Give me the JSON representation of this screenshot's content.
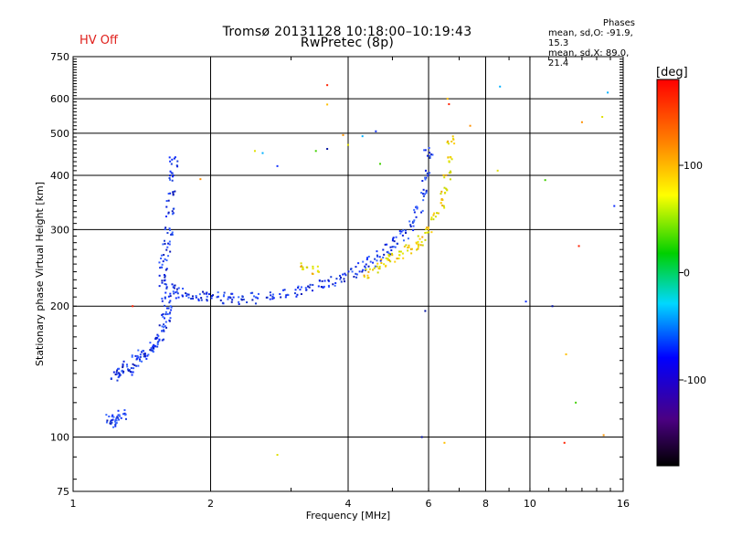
{
  "title": "Tromsø 20131128 10:18:00–10:19:43",
  "subtitle": "RwPretec (8p)",
  "status": "HV Off",
  "phase_box": {
    "title": "Phases",
    "line1": "mean, sd,O: -91.9, 15.3",
    "line2": "mean, sd,X: 89.0, 21.4"
  },
  "colorbar": {
    "label": "[deg]",
    "ticks": [
      "100",
      "0",
      "-100"
    ],
    "tick_values": [
      100,
      0,
      -100
    ],
    "range": [
      -180,
      180
    ]
  },
  "chart_data": {
    "type": "scatter",
    "xlabel": "Frequency [MHz]",
    "ylabel": "Stationary phase Virtual Height [km]",
    "x_scale": "log",
    "y_scale": "log",
    "xlim": [
      1,
      16
    ],
    "ylim": [
      75,
      750
    ],
    "x_ticks": [
      1,
      2,
      4,
      6,
      8,
      10,
      16
    ],
    "y_ticks": [
      75,
      100,
      200,
      300,
      400,
      500,
      600,
      750
    ],
    "grid": true,
    "o_trace": [
      [
        1.2,
        110
      ],
      [
        1.22,
        108
      ],
      [
        1.25,
        111
      ],
      [
        1.28,
        112
      ],
      [
        1.24,
        138
      ],
      [
        1.27,
        142
      ],
      [
        1.3,
        145
      ],
      [
        1.33,
        143
      ],
      [
        1.36,
        150
      ],
      [
        1.4,
        155
      ],
      [
        1.43,
        152
      ],
      [
        1.47,
        158
      ],
      [
        1.5,
        162
      ],
      [
        1.53,
        165
      ],
      [
        1.55,
        172
      ],
      [
        1.58,
        180
      ],
      [
        1.6,
        188
      ],
      [
        1.62,
        195
      ],
      [
        1.6,
        210
      ],
      [
        1.58,
        225
      ],
      [
        1.57,
        240
      ],
      [
        1.58,
        255
      ],
      [
        1.6,
        275
      ],
      [
        1.62,
        300
      ],
      [
        1.63,
        330
      ],
      [
        1.64,
        360
      ],
      [
        1.65,
        400
      ],
      [
        1.66,
        430
      ],
      [
        1.66,
        220
      ],
      [
        1.72,
        215
      ],
      [
        1.8,
        212
      ],
      [
        1.9,
        210
      ],
      [
        2.0,
        210
      ],
      [
        2.1,
        209
      ],
      [
        2.2,
        208
      ],
      [
        2.35,
        208
      ],
      [
        2.5,
        209
      ],
      [
        2.7,
        211
      ],
      [
        2.9,
        213
      ],
      [
        3.1,
        216
      ],
      [
        3.3,
        219
      ],
      [
        3.5,
        223
      ],
      [
        3.7,
        228
      ],
      [
        3.9,
        234
      ],
      [
        4.1,
        240
      ],
      [
        4.3,
        247
      ],
      [
        4.5,
        254
      ],
      [
        4.7,
        262
      ],
      [
        4.9,
        270
      ],
      [
        5.1,
        280
      ],
      [
        5.3,
        292
      ],
      [
        5.5,
        308
      ],
      [
        5.7,
        330
      ],
      [
        5.85,
        360
      ],
      [
        5.95,
        400
      ],
      [
        6.0,
        450
      ]
    ],
    "x_trace": [
      [
        3.2,
        248
      ],
      [
        3.4,
        242
      ],
      [
        4.4,
        238
      ],
      [
        4.6,
        245
      ],
      [
        4.8,
        252
      ],
      [
        5.0,
        258
      ],
      [
        5.2,
        264
      ],
      [
        5.4,
        270
      ],
      [
        5.6,
        276
      ],
      [
        5.8,
        283
      ],
      [
        6.0,
        300
      ],
      [
        6.2,
        320
      ],
      [
        6.4,
        345
      ],
      [
        6.5,
        370
      ],
      [
        6.6,
        400
      ],
      [
        6.65,
        440
      ],
      [
        6.7,
        480
      ]
    ],
    "scattered_points": [
      [
        1.35,
        200
      ],
      [
        1.9,
        392
      ],
      [
        2.5,
        455
      ],
      [
        2.6,
        450
      ],
      [
        2.8,
        420
      ],
      [
        3.4,
        455
      ],
      [
        3.6,
        460
      ],
      [
        3.6,
        582
      ],
      [
        3.6,
        645
      ],
      [
        3.9,
        495
      ],
      [
        4.0,
        470
      ],
      [
        4.3,
        492
      ],
      [
        4.6,
        505
      ],
      [
        4.7,
        425
      ],
      [
        5.9,
        195
      ],
      [
        6.6,
        600
      ],
      [
        6.65,
        583
      ],
      [
        7.4,
        520
      ],
      [
        8.5,
        410
      ],
      [
        8.6,
        640
      ],
      [
        9.8,
        205
      ],
      [
        10.8,
        390
      ],
      [
        11.2,
        200
      ],
      [
        12.0,
        155
      ],
      [
        12.8,
        275
      ],
      [
        13.0,
        530
      ],
      [
        14.4,
        545
      ],
      [
        14.8,
        620
      ],
      [
        15.3,
        340
      ],
      [
        12.6,
        120
      ],
      [
        5.8,
        100
      ],
      [
        6.5,
        97
      ],
      [
        11.9,
        97
      ],
      [
        14.5,
        101
      ],
      [
        2.8,
        91
      ]
    ]
  }
}
